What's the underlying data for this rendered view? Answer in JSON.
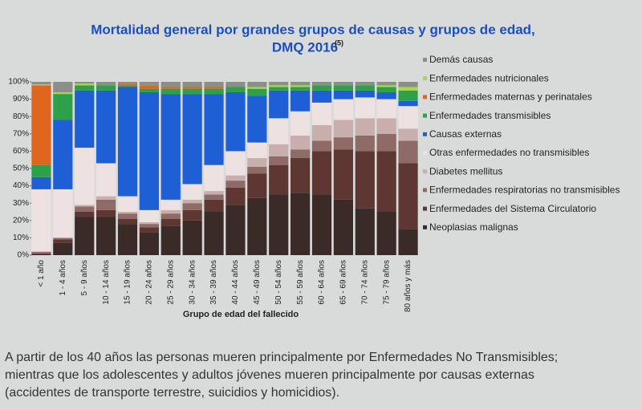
{
  "chart_data": {
    "type": "stacked_bar",
    "title": "Mortalidad general por grandes grupos de causas y grupos de edad,",
    "subtitle": "DMQ 2016",
    "title_note": "(5)",
    "x_label": "Grupo de edad del fallecido",
    "categories": [
      "< 1 año",
      "1 - 4 años",
      "5 - 9 años",
      "10 - 14 años",
      "15 - 19 años",
      "20 - 24 años",
      "25 - 29 años",
      "30 - 34 años",
      "35 - 39 años",
      "40 - 44 años",
      "45 - 49 años",
      "50 - 54 años",
      "55 - 59 años",
      "60 - 64 años",
      "65 - 69 años",
      "70 - 74 años",
      "75 - 79 años",
      "80 años y más"
    ],
    "ylim": [
      0,
      100
    ],
    "yticks": [
      {
        "value": 0,
        "label": "0%"
      },
      {
        "value": 10,
        "label": "10%"
      },
      {
        "value": 20,
        "label": "20%"
      },
      {
        "value": 30,
        "label": "30%"
      },
      {
        "value": 40,
        "label": "40%"
      },
      {
        "value": 50,
        "label": "50%"
      },
      {
        "value": 60,
        "label": "60%"
      },
      {
        "value": 70,
        "label": "70%"
      },
      {
        "value": 80,
        "label": "80%"
      },
      {
        "value": 90,
        "label": "90%"
      },
      {
        "value": 100,
        "label": "100%"
      }
    ],
    "legend": "right",
    "series": [
      {
        "name": "Neoplasias malignas",
        "color": "#3a2a28",
        "values": [
          0.5,
          7,
          22,
          22,
          18,
          13,
          17,
          20,
          25,
          29,
          33,
          35,
          36,
          35,
          32,
          27,
          25,
          15
        ]
      },
      {
        "name": "Enfermedades del Sistema Circulatorio",
        "color": "#5e3632",
        "values": [
          0.5,
          2,
          3,
          4,
          3,
          3,
          4,
          6,
          7,
          10,
          14,
          17,
          20,
          25,
          29,
          33,
          35,
          38
        ]
      },
      {
        "name": "Enfermedades respiratorias no transmisibles",
        "color": "#8e6b67",
        "values": [
          1,
          1,
          3,
          6,
          3,
          2,
          3,
          4,
          3,
          4,
          4,
          5,
          5,
          6,
          7,
          9,
          10,
          13
        ]
      },
      {
        "name": "Diabetes mellitus",
        "color": "#c9aeae",
        "values": [
          0,
          0,
          1,
          2,
          1,
          1,
          2,
          2,
          2,
          3,
          5,
          7,
          8,
          9,
          10,
          10,
          9,
          7
        ]
      },
      {
        "name": "Otras enfermedades no transmisibles",
        "color": "#ede2e1",
        "values": [
          36,
          28,
          33,
          19,
          9,
          7,
          6,
          9,
          15,
          14,
          9,
          15,
          14,
          13,
          12,
          12,
          11,
          13
        ]
      },
      {
        "name": "Causas externas",
        "color": "#1f5fd6",
        "values": [
          7,
          40,
          33,
          42,
          63,
          68,
          61,
          52,
          41,
          34,
          27,
          16,
          12,
          7,
          5,
          4,
          4,
          3
        ]
      },
      {
        "name": "Enfermedades transmisibles",
        "color": "#2fa04a",
        "values": [
          7,
          15,
          3,
          3,
          1,
          2,
          3,
          3,
          3,
          3,
          4,
          2,
          2,
          3,
          3,
          3,
          3,
          6
        ]
      },
      {
        "name": "Enfermedades maternas y perinatales",
        "color": "#e0661f",
        "values": [
          46,
          0,
          0,
          0,
          1,
          2,
          1,
          1,
          1,
          0,
          0,
          0,
          0,
          0,
          0,
          0,
          0,
          0
        ]
      },
      {
        "name": "Enfermedades nutricionales",
        "color": "#a8d84a",
        "values": [
          0.5,
          1,
          1,
          0,
          0,
          0,
          0,
          0,
          0,
          0,
          1,
          1,
          1,
          0,
          0,
          0,
          1,
          2
        ]
      },
      {
        "name": "Demás causas",
        "color": "#8a8f88",
        "values": [
          1.5,
          6,
          1,
          2,
          1,
          2,
          3,
          3,
          3,
          3,
          3,
          2,
          2,
          2,
          2,
          2,
          2,
          3
        ]
      }
    ],
    "caption": [
      "A partir de los 40 años las personas mueren principalmente por Enfermedades No Transmisibles;",
      "mientras que los adolescentes y adultos jóvenes mueren principalmente por causas externas",
      "(accidentes de transporte terrestre, suicidios y homicidios)."
    ]
  }
}
